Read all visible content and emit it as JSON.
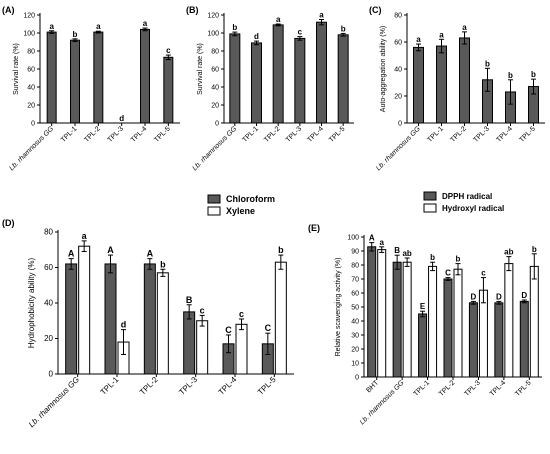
{
  "panels": [
    {
      "letter": "(A)",
      "ylabel": "Survival rate (%)",
      "ylim": [
        0,
        120
      ],
      "yticks": [
        0,
        20,
        40,
        60,
        80,
        100,
        120
      ],
      "categories": [
        "Lb. rhamnosus GG",
        "TPL-1",
        "TPL-2",
        "TPL-3",
        "TPL-4",
        "TPL-5"
      ],
      "italic_first": true,
      "series": [
        {
          "values": [
            101,
            92,
            101,
            0,
            104,
            73
          ],
          "errors": [
            1.5,
            1.5,
            1,
            0,
            1.5,
            2.5
          ],
          "letters": [
            "a",
            "b",
            "a",
            "d",
            "a",
            "c"
          ]
        }
      ]
    },
    {
      "letter": "(B)",
      "ylabel": "Survival rate (%)",
      "ylim": [
        0,
        120
      ],
      "yticks": [
        0,
        20,
        40,
        60,
        80,
        100,
        120
      ],
      "categories": [
        "Lb. rhamnosus GG",
        "TPL-1",
        "TPL-2",
        "TPL-3",
        "TPL-4",
        "TPL-5"
      ],
      "italic_first": true,
      "series": [
        {
          "values": [
            99,
            89,
            109,
            94,
            112,
            98
          ],
          "errors": [
            2,
            2,
            1,
            2,
            3,
            1.5
          ],
          "letters": [
            "b",
            "d",
            "a",
            "c",
            "a",
            "b"
          ]
        }
      ]
    },
    {
      "letter": "(C)",
      "ylabel": "Auto-aggregation ability (%)",
      "ylim": [
        0,
        80
      ],
      "yticks": [
        0,
        20,
        40,
        60,
        80
      ],
      "categories": [
        "Lb. rhamnosus GG",
        "TPL-1",
        "TPL-2",
        "TPL-3",
        "TPL-4",
        "TPL-5"
      ],
      "italic_first": true,
      "series": [
        {
          "values": [
            56,
            57,
            63,
            32,
            23,
            27
          ],
          "errors": [
            2.5,
            5,
            4.5,
            8.5,
            9,
            5.5
          ],
          "letters": [
            "a",
            "a",
            "a",
            "b",
            "b",
            "b"
          ]
        }
      ]
    },
    {
      "letter": "(D)",
      "ylabel": "Hydrophobicity ability (%)",
      "ylim": [
        0,
        80
      ],
      "yticks": [
        0,
        20,
        40,
        60,
        80
      ],
      "categories": [
        "Lb. rhamnosus GG",
        "TPL-1",
        "TPL-2",
        "TPL-3",
        "TPL-4",
        "TPL-5"
      ],
      "italic_first": true,
      "legend": [
        "Chloroform",
        "Xylene"
      ],
      "series": [
        {
          "name": "Chloroform",
          "values": [
            62,
            62,
            62,
            35,
            17,
            17
          ],
          "errors": [
            3,
            5,
            3,
            4,
            5,
            6
          ],
          "letters": [
            "A",
            "A",
            "A",
            "B",
            "C",
            "C"
          ]
        },
        {
          "name": "Xylene",
          "values": [
            72,
            18,
            57,
            30,
            28,
            63
          ],
          "errors": [
            3,
            7,
            2,
            3,
            3,
            4
          ],
          "letters": [
            "a",
            "d",
            "b",
            "c",
            "c",
            "b"
          ]
        }
      ]
    },
    {
      "letter": "(E)",
      "ylabel": "Relative scavenging activity (%)",
      "ylim": [
        0,
        100
      ],
      "yticks": [
        0,
        10,
        20,
        30,
        40,
        50,
        60,
        70,
        80,
        90,
        100
      ],
      "categories": [
        "BHT",
        "Lb. rhamnosus GG",
        "TPL-1",
        "TPL-2",
        "TPL-3",
        "TPL-4",
        "TPL-5"
      ],
      "italic_index": 1,
      "legend": [
        "DPPH radical",
        "Hydroxyl radical"
      ],
      "series": [
        {
          "name": "DPPH radical",
          "values": [
            93,
            82,
            45,
            70,
            53,
            53,
            54
          ],
          "errors": [
            3,
            5,
            2,
            1,
            1,
            1,
            1
          ],
          "letters": [
            "A",
            "B",
            "E",
            "C",
            "D",
            "D",
            "D"
          ]
        },
        {
          "name": "Hydroxyl radical",
          "values": [
            91,
            82,
            79,
            77,
            62,
            81,
            79
          ],
          "errors": [
            2,
            3,
            3,
            4,
            9,
            5,
            9
          ],
          "letters": [
            "a",
            "ab",
            "b",
            "b",
            "c",
            "ab",
            "b"
          ]
        }
      ]
    }
  ],
  "colors": {
    "dark": "#595959",
    "light": "#ffffff",
    "stroke": "#000000"
  }
}
